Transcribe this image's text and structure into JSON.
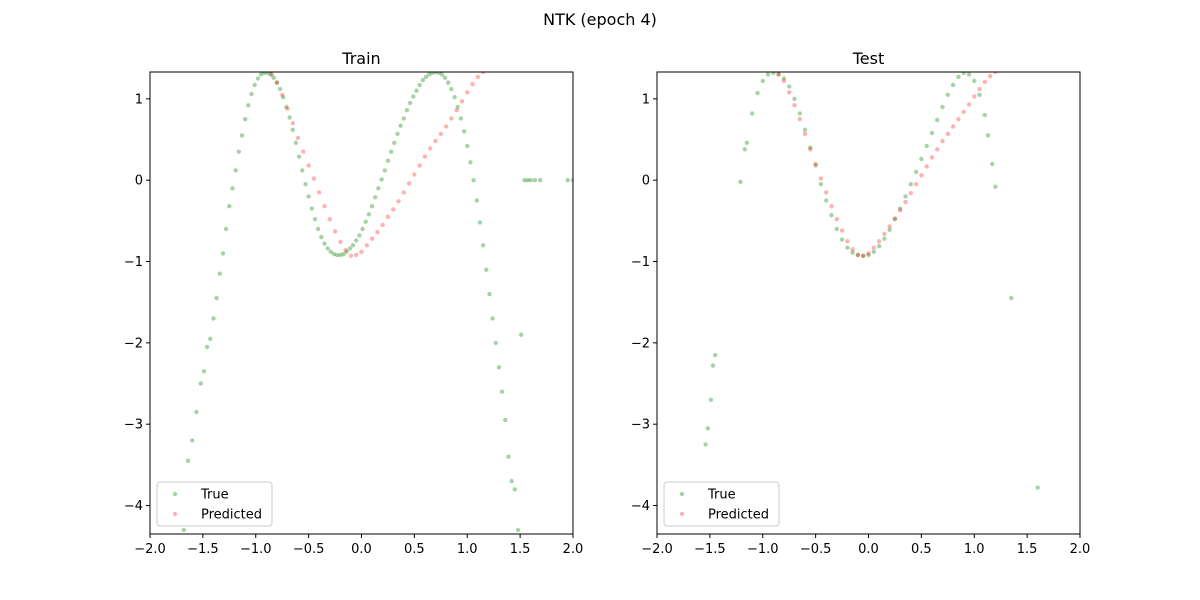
{
  "figure": {
    "suptitle": "NTK (epoch 4)"
  },
  "colors": {
    "true": "#008000",
    "predicted": "#ff0000",
    "axes": "#000000",
    "background": "#ffffff"
  },
  "chart_data": [
    {
      "type": "scatter",
      "title": "Train",
      "xlim": [
        -2.0,
        2.0
      ],
      "ylim": [
        -4.35,
        1.33
      ],
      "xticks": [
        -2.0,
        -1.5,
        -1.0,
        -0.5,
        0.0,
        0.5,
        1.0,
        1.5,
        2.0
      ],
      "xtick_labels": [
        "−2.0",
        "−1.5",
        "−1.0",
        "−0.5",
        "0.0",
        "0.5",
        "1.0",
        "1.5",
        "2.0"
      ],
      "yticks": [
        1,
        0,
        -1,
        -2,
        -3,
        -4
      ],
      "ytick_labels": [
        "1",
        "0",
        "−1",
        "−2",
        "−3",
        "−4"
      ],
      "grid": false,
      "legend": {
        "position": "bottom-left",
        "entries": [
          "True",
          "Predicted"
        ]
      },
      "series": [
        {
          "name": "True",
          "color": "#008000",
          "alpha": 0.35,
          "x": [
            -1.68,
            -1.64,
            -1.6,
            -1.56,
            -1.52,
            -1.49,
            -1.46,
            -1.43,
            -1.4,
            -1.37,
            -1.34,
            -1.31,
            -1.28,
            -1.25,
            -1.22,
            -1.19,
            -1.16,
            -1.13,
            -1.1,
            -1.07,
            -1.04,
            -1.01,
            -0.98,
            -0.95,
            -0.92,
            -0.89,
            -0.86,
            -0.83,
            -0.8,
            -0.77,
            -0.74,
            -0.71,
            -0.68,
            -0.65,
            -0.62,
            -0.59,
            -0.56,
            -0.53,
            -0.5,
            -0.47,
            -0.44,
            -0.41,
            -0.38,
            -0.35,
            -0.32,
            -0.29,
            -0.26,
            -0.23,
            -0.2,
            -0.17,
            -0.14,
            -0.11,
            -0.08,
            -0.05,
            -0.02,
            0.01,
            0.04,
            0.07,
            0.1,
            0.13,
            0.16,
            0.19,
            0.22,
            0.25,
            0.28,
            0.31,
            0.34,
            0.37,
            0.4,
            0.43,
            0.46,
            0.49,
            0.52,
            0.55,
            0.58,
            0.61,
            0.64,
            0.67,
            0.7,
            0.73,
            0.76,
            0.79,
            0.82,
            0.85,
            0.88,
            0.91,
            0.94,
            0.97,
            1.0,
            1.03,
            1.06,
            1.09,
            1.12,
            1.15,
            1.18,
            1.21,
            1.24,
            1.27,
            1.3,
            1.33,
            1.36,
            1.39,
            1.42,
            1.45,
            1.48,
            1.51,
            1.54,
            1.57,
            1.6,
            1.64,
            1.69,
            1.95,
            2.0
          ],
          "y": [
            -4.3,
            -3.45,
            -3.2,
            -2.85,
            -2.5,
            -2.35,
            -2.05,
            -1.95,
            -1.7,
            -1.45,
            -1.15,
            -0.9,
            -0.6,
            -0.32,
            -0.1,
            0.12,
            0.35,
            0.55,
            0.75,
            0.92,
            1.06,
            1.17,
            1.25,
            1.3,
            1.32,
            1.32,
            1.3,
            1.26,
            1.2,
            1.12,
            1.02,
            0.9,
            0.77,
            0.62,
            0.46,
            0.29,
            0.12,
            -0.05,
            -0.2,
            -0.35,
            -0.48,
            -0.6,
            -0.7,
            -0.78,
            -0.84,
            -0.88,
            -0.91,
            -0.92,
            -0.92,
            -0.91,
            -0.88,
            -0.84,
            -0.8,
            -0.74,
            -0.68,
            -0.6,
            -0.51,
            -0.42,
            -0.32,
            -0.21,
            -0.1,
            0.01,
            0.12,
            0.24,
            0.35,
            0.46,
            0.57,
            0.67,
            0.76,
            0.86,
            0.95,
            1.03,
            1.1,
            1.17,
            1.23,
            1.27,
            1.3,
            1.32,
            1.33,
            1.32,
            1.3,
            1.26,
            1.2,
            1.12,
            1.02,
            0.9,
            0.76,
            0.6,
            0.42,
            0.22,
            0.0,
            -0.25,
            -0.52,
            -0.8,
            -1.1,
            -1.4,
            -1.7,
            -2.0,
            -2.3,
            -2.6,
            -2.95,
            -3.4,
            -3.7,
            -3.8,
            -4.3,
            -1.9,
            0.0,
            0.0,
            0.0,
            0.0,
            0.0,
            0.0,
            0.0
          ],
          "note": ""
        },
        {
          "name": "Predicted",
          "color": "#ff0000",
          "alpha": 0.3,
          "x": [
            -0.85,
            -0.8,
            -0.75,
            -0.7,
            -0.65,
            -0.6,
            -0.55,
            -0.5,
            -0.45,
            -0.4,
            -0.35,
            -0.3,
            -0.25,
            -0.2,
            -0.15,
            -0.1,
            -0.05,
            0.0,
            0.05,
            0.1,
            0.15,
            0.2,
            0.25,
            0.3,
            0.35,
            0.4,
            0.45,
            0.5,
            0.55,
            0.6,
            0.65,
            0.7,
            0.75,
            0.8,
            0.85,
            0.9,
            0.95,
            1.0,
            1.05,
            1.1,
            1.15
          ],
          "y": [
            1.3,
            1.2,
            1.05,
            0.88,
            0.7,
            0.52,
            0.35,
            0.18,
            0.02,
            -0.15,
            -0.32,
            -0.48,
            -0.63,
            -0.76,
            -0.86,
            -0.93,
            -0.92,
            -0.88,
            -0.8,
            -0.72,
            -0.64,
            -0.55,
            -0.45,
            -0.36,
            -0.26,
            -0.15,
            -0.04,
            0.07,
            0.18,
            0.29,
            0.39,
            0.48,
            0.57,
            0.66,
            0.76,
            0.86,
            0.97,
            1.08,
            1.18,
            1.27,
            1.33
          ]
        }
      ]
    },
    {
      "type": "scatter",
      "title": "Test",
      "xlim": [
        -2.0,
        2.0
      ],
      "ylim": [
        -4.35,
        1.33
      ],
      "xticks": [
        -2.0,
        -1.5,
        -1.0,
        -0.5,
        0.0,
        0.5,
        1.0,
        1.5,
        2.0
      ],
      "xtick_labels": [
        "−2.0",
        "−1.5",
        "−1.0",
        "−0.5",
        "0.0",
        "0.5",
        "1.0",
        "1.5",
        "2.0"
      ],
      "yticks": [
        1,
        0,
        -1,
        -2,
        -3,
        -4
      ],
      "ytick_labels": [
        "1",
        "0",
        "−1",
        "−2",
        "−3",
        "−4"
      ],
      "grid": false,
      "legend": {
        "position": "bottom-left",
        "entries": [
          "True",
          "Predicted"
        ]
      },
      "series": [
        {
          "name": "True",
          "color": "#008000",
          "alpha": 0.35,
          "x": [
            -1.54,
            -1.52,
            -1.49,
            -1.47,
            -1.45,
            -1.21,
            -1.17,
            -1.15,
            -1.1,
            -1.05,
            -1.0,
            -0.95,
            -0.9,
            -0.85,
            -0.8,
            -0.75,
            -0.7,
            -0.65,
            -0.6,
            -0.55,
            -0.5,
            -0.45,
            -0.4,
            -0.35,
            -0.3,
            -0.25,
            -0.2,
            -0.15,
            -0.1,
            -0.05,
            0.0,
            0.05,
            0.1,
            0.15,
            0.2,
            0.25,
            0.3,
            0.35,
            0.4,
            0.45,
            0.5,
            0.55,
            0.6,
            0.65,
            0.7,
            0.75,
            0.8,
            0.85,
            0.9,
            0.95,
            1.0,
            1.05,
            1.1,
            1.13,
            1.17,
            1.2,
            1.35,
            1.6
          ],
          "y": [
            -3.25,
            -3.05,
            -2.7,
            -2.28,
            -2.15,
            -0.02,
            0.38,
            0.46,
            0.82,
            1.07,
            1.22,
            1.3,
            1.32,
            1.3,
            1.25,
            1.15,
            1.0,
            0.82,
            0.62,
            0.4,
            0.18,
            -0.05,
            -0.25,
            -0.43,
            -0.6,
            -0.73,
            -0.83,
            -0.89,
            -0.92,
            -0.93,
            -0.92,
            -0.88,
            -0.81,
            -0.72,
            -0.61,
            -0.48,
            -0.35,
            -0.2,
            -0.05,
            0.1,
            0.26,
            0.42,
            0.58,
            0.74,
            0.9,
            1.05,
            1.17,
            1.27,
            1.32,
            1.3,
            1.22,
            1.05,
            0.8,
            0.55,
            0.2,
            -0.08,
            -1.45,
            -3.78
          ]
        },
        {
          "name": "Predicted",
          "color": "#ff0000",
          "alpha": 0.3,
          "x": [
            -0.85,
            -0.8,
            -0.75,
            -0.7,
            -0.65,
            -0.6,
            -0.55,
            -0.5,
            -0.45,
            -0.4,
            -0.35,
            -0.3,
            -0.25,
            -0.2,
            -0.15,
            -0.1,
            -0.05,
            0.0,
            0.05,
            0.1,
            0.15,
            0.2,
            0.25,
            0.3,
            0.35,
            0.4,
            0.45,
            0.5,
            0.55,
            0.6,
            0.65,
            0.7,
            0.75,
            0.8,
            0.85,
            0.9,
            0.95,
            1.0,
            1.05,
            1.1,
            1.15,
            1.2
          ],
          "y": [
            1.3,
            1.22,
            1.08,
            0.92,
            0.75,
            0.57,
            0.38,
            0.2,
            0.02,
            -0.15,
            -0.32,
            -0.48,
            -0.62,
            -0.75,
            -0.85,
            -0.92,
            -0.93,
            -0.9,
            -0.83,
            -0.75,
            -0.66,
            -0.57,
            -0.47,
            -0.37,
            -0.27,
            -0.16,
            -0.05,
            0.06,
            0.17,
            0.28,
            0.38,
            0.48,
            0.57,
            0.66,
            0.75,
            0.84,
            0.93,
            1.03,
            1.12,
            1.21,
            1.28,
            1.33
          ]
        }
      ]
    }
  ]
}
